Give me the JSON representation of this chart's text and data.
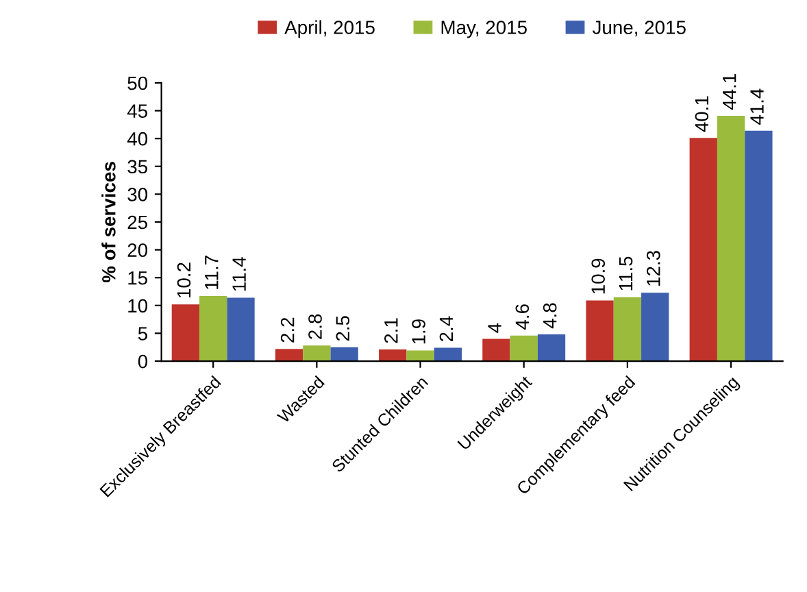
{
  "chart_data": {
    "type": "bar",
    "ylabel": "% of services",
    "categories": [
      "Exclusively Breastfed",
      "Wasted",
      "Stunted Children",
      "Underweight",
      "Complementary feed",
      "Nutrition Counseling"
    ],
    "series": [
      {
        "name": "April, 2015",
        "color": "#c0332b",
        "values": [
          10.2,
          2.2,
          2.1,
          4,
          10.9,
          40.1
        ]
      },
      {
        "name": "May, 2015",
        "color": "#9bbb3c",
        "values": [
          11.7,
          2.8,
          1.9,
          4.6,
          11.5,
          44.1
        ]
      },
      {
        "name": "June, 2015",
        "color": "#3e5fae",
        "values": [
          11.4,
          2.5,
          2.4,
          4.8,
          12.3,
          41.4
        ]
      }
    ],
    "ylim": [
      0,
      50
    ],
    "yticks": [
      0,
      5,
      10,
      15,
      20,
      25,
      30,
      35,
      40,
      45,
      50
    ],
    "data_labels": true,
    "legend": "top",
    "grid": false
  }
}
